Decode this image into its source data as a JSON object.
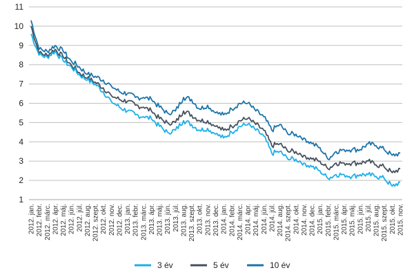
{
  "chart_data": {
    "type": "line",
    "title": "",
    "xlabel": "",
    "ylabel": "",
    "ylim": [
      1,
      11
    ],
    "yticks": [
      1,
      2,
      3,
      4,
      5,
      6,
      7,
      8,
      9,
      10,
      11
    ],
    "grid": "horizontal",
    "legend_position": "bottom",
    "x": [
      "2012. jan.",
      "2012. febr.",
      "2012. márc.",
      "2012. ápr.",
      "2012. máj.",
      "2012. jún.",
      "2012. júl.",
      "2012. aug.",
      "2012. szept.",
      "2012. okt.",
      "2012. nov.",
      "2012. dec.",
      "2013. jan.",
      "2013. febr.",
      "2013. márc.",
      "2013. ápr.",
      "2013. máj.",
      "2013. jún.",
      "2013. júl.",
      "2013. aug.",
      "2013. szept.",
      "2013. okt.",
      "2013. nov.",
      "2013. dec.",
      "2014. jan.",
      "2014. febr.",
      "2014. márc.",
      "2014. ápr.",
      "2014. máj.",
      "2014. jún.",
      "2014. júl.",
      "2014. aug.",
      "2014. szept.",
      "2014. okt.",
      "2014. nov.",
      "2014. dec.",
      "2015. jan.",
      "2015. febr.",
      "2015. márc.",
      "2015. ápr.",
      "2015. máj.",
      "2015. jún.",
      "2015. júl.",
      "2015. aug.",
      "2015. szept.",
      "2015. okt.",
      "2015. nov."
    ],
    "series": [
      {
        "name": "3 év",
        "color": "#1ab0e8",
        "values": [
          9.6,
          8.5,
          8.4,
          8.7,
          8.2,
          7.9,
          7.5,
          7.2,
          7.0,
          6.6,
          6.1,
          5.8,
          5.6,
          5.4,
          5.3,
          5.2,
          4.8,
          4.5,
          4.6,
          5.1,
          4.9,
          4.6,
          4.7,
          4.4,
          4.2,
          4.5,
          4.8,
          4.9,
          4.6,
          4.3,
          3.4,
          3.5,
          3.1,
          3.1,
          2.9,
          2.7,
          2.5,
          2.1,
          2.3,
          2.3,
          2.2,
          2.3,
          2.3,
          2.2,
          2.1,
          1.7,
          1.9
        ]
      },
      {
        "name": "5 év",
        "color": "#44505c",
        "values": [
          10.0,
          8.6,
          8.5,
          8.8,
          8.4,
          8.0,
          7.6,
          7.3,
          7.1,
          6.8,
          6.4,
          6.2,
          6.1,
          5.9,
          5.8,
          5.6,
          5.2,
          5.0,
          5.0,
          5.6,
          5.4,
          5.1,
          5.1,
          4.8,
          4.6,
          4.8,
          5.1,
          5.2,
          4.9,
          4.6,
          3.8,
          3.9,
          3.5,
          3.5,
          3.3,
          3.1,
          3.0,
          2.6,
          2.9,
          2.9,
          2.9,
          2.9,
          3.0,
          2.8,
          2.7,
          2.4,
          2.6
        ]
      },
      {
        "name": "10 év",
        "color": "#1b73a8",
        "values": [
          10.3,
          8.8,
          8.7,
          9.0,
          8.7,
          8.2,
          7.9,
          7.5,
          7.4,
          7.2,
          6.9,
          6.6,
          6.5,
          6.3,
          6.3,
          6.2,
          5.8,
          5.5,
          5.6,
          6.3,
          6.2,
          5.7,
          5.9,
          5.5,
          5.4,
          5.7,
          6.0,
          6.0,
          5.6,
          5.3,
          4.6,
          4.9,
          4.4,
          4.4,
          4.2,
          3.9,
          3.7,
          3.1,
          3.5,
          3.6,
          3.6,
          3.6,
          3.9,
          3.8,
          3.6,
          3.3,
          3.4
        ]
      }
    ]
  }
}
